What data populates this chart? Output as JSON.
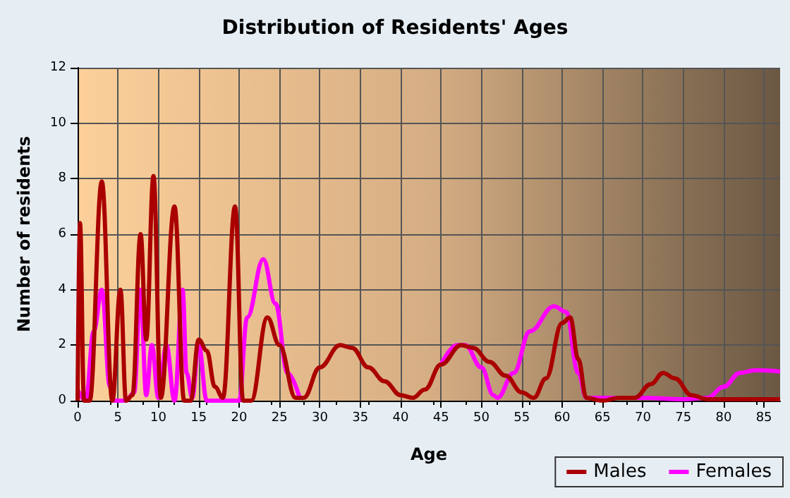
{
  "chart_data": {
    "type": "line",
    "title": "Distribution of Residents' Ages",
    "xlabel": "Age",
    "ylabel": "Number of residents",
    "xlim": [
      0,
      87
    ],
    "xticks": [
      0,
      5,
      10,
      15,
      20,
      25,
      30,
      35,
      40,
      45,
      50,
      55,
      60,
      65,
      70,
      75,
      80,
      85
    ],
    "ylim": [
      0,
      12
    ],
    "yticks": [
      0,
      2,
      4,
      6,
      8,
      10,
      12
    ],
    "grid": true,
    "legend": "bottom right",
    "marker": "none",
    "line_style": "solid",
    "series": [
      {
        "name": "Males",
        "color": "#aa0000",
        "x": [
          0,
          0.3,
          0.8,
          1.5,
          3,
          4.3,
          5.3,
          6,
          6.8,
          7.8,
          8.5,
          9.4,
          10.3,
          12,
          13.2,
          14,
          15,
          16,
          17,
          18,
          19.5,
          20.5,
          21.5,
          23.5,
          25,
          27,
          28,
          30,
          32.5,
          34,
          36,
          38,
          40,
          41.5,
          43,
          45,
          47.5,
          49,
          51,
          53,
          55,
          56.5,
          58,
          60,
          61,
          62,
          63,
          65,
          67,
          69,
          71,
          72.5,
          74,
          76,
          78,
          80,
          82,
          87
        ],
        "values": [
          0,
          6.4,
          0,
          0,
          7.9,
          0,
          4,
          0,
          0.2,
          6,
          2.2,
          8.1,
          0.1,
          7,
          0,
          0,
          2.2,
          1.8,
          0.5,
          0.1,
          7,
          0,
          0,
          3,
          2,
          0.1,
          0.1,
          1.2,
          2,
          1.9,
          1.2,
          0.7,
          0.2,
          0.1,
          0.4,
          1.3,
          2,
          1.9,
          1.4,
          0.9,
          0.3,
          0.1,
          0.8,
          2.8,
          3,
          1.5,
          0.1,
          0,
          0.1,
          0.1,
          0.6,
          1,
          0.8,
          0.2,
          0.05,
          0.05,
          0.05,
          0.05
        ]
      },
      {
        "name": "Females",
        "color": "#ff00ff",
        "x": [
          0,
          1,
          2,
          3,
          4,
          4.5,
          6,
          7,
          7.8,
          8.5,
          9.2,
          10,
          11,
          12,
          13,
          13.5,
          14.2,
          15,
          16,
          17,
          20,
          21,
          23,
          24.5,
          26,
          27.5,
          30,
          32,
          34,
          36,
          38,
          40,
          41.5,
          43,
          45,
          47,
          48,
          50,
          51.5,
          52,
          54,
          56,
          59,
          60.5,
          62,
          63,
          65,
          70,
          75,
          78,
          80,
          82,
          84,
          87
        ],
        "values": [
          0.4,
          0,
          2.5,
          4,
          0.5,
          0,
          0,
          0.3,
          4,
          0.2,
          2,
          0.1,
          2,
          0,
          4,
          1,
          0.1,
          2,
          0,
          0,
          0,
          3,
          5.1,
          3.5,
          1,
          0.1,
          null,
          null,
          null,
          null,
          null,
          null,
          null,
          null,
          1.3,
          2,
          2,
          1.2,
          0.2,
          0.1,
          1,
          2.5,
          3.4,
          3.2,
          1,
          0.1,
          0.1,
          0.1,
          0.05,
          0.1,
          0.5,
          1,
          1.1,
          1.05
        ]
      }
    ]
  }
}
